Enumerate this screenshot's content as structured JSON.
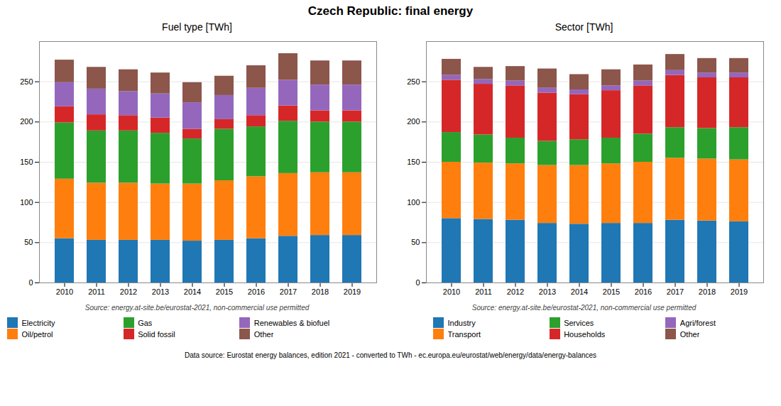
{
  "title": "Czech Republic: final energy",
  "annotations": [
    "Data source: Eurostat energy balances, edition 2021 - converted to TWh - ec.europa.eu/eurostat/web/energy/data/energy-balances"
  ],
  "chart_data": [
    {
      "type": "bar",
      "title": "Fuel type [TWh]",
      "stacked": true,
      "grid": true,
      "legend": "lower left",
      "categories": [
        "2010",
        "2011",
        "2012",
        "2013",
        "2014",
        "2015",
        "2016",
        "2017",
        "2018",
        "2019"
      ],
      "series": [
        {
          "name": "Electricity",
          "color": "#1f77b4",
          "values": [
            55,
            53,
            53,
            53,
            52,
            53,
            55,
            58,
            59,
            59
          ]
        },
        {
          "name": "Oil/petrol",
          "color": "#ff7f0e",
          "values": [
            74,
            71,
            71,
            70,
            71,
            74,
            77,
            78,
            78,
            78
          ]
        },
        {
          "name": "Gas",
          "color": "#2ca02c",
          "values": [
            70,
            65,
            65,
            63,
            56,
            64,
            62,
            65,
            63,
            63
          ]
        },
        {
          "name": "Solid fossil",
          "color": "#d62728",
          "values": [
            20,
            20,
            19,
            19,
            12,
            12,
            14,
            19,
            14,
            14
          ]
        },
        {
          "name": "Renewables & biofuel",
          "color": "#9467bd",
          "values": [
            30,
            32,
            30,
            30,
            33,
            30,
            34,
            32,
            32,
            32
          ]
        },
        {
          "name": "Other",
          "color": "#8c564b",
          "values": [
            28,
            27,
            27,
            26,
            25,
            24,
            28,
            33,
            30,
            30
          ]
        }
      ],
      "ylim": [
        0,
        300
      ],
      "yticks": [
        0,
        50,
        100,
        150,
        200,
        250
      ],
      "annotations": [
        "Source: energy.at-site.be/eurostat-2021, non-commercial use permitted"
      ]
    },
    {
      "type": "bar",
      "title": "Sector [TWh]",
      "stacked": true,
      "grid": true,
      "legend": "lower right",
      "categories": [
        "2010",
        "2011",
        "2012",
        "2013",
        "2014",
        "2015",
        "2016",
        "2017",
        "2018",
        "2019"
      ],
      "series": [
        {
          "name": "Industry",
          "color": "#1f77b4",
          "values": [
            80,
            79,
            78,
            74,
            73,
            74,
            74,
            78,
            77,
            76
          ]
        },
        {
          "name": "Transport",
          "color": "#ff7f0e",
          "values": [
            70,
            70,
            70,
            72,
            73,
            74,
            76,
            77,
            77,
            77
          ]
        },
        {
          "name": "Services",
          "color": "#2ca02c",
          "values": [
            37,
            35,
            32,
            30,
            32,
            32,
            35,
            38,
            38,
            40
          ]
        },
        {
          "name": "Households",
          "color": "#d62728",
          "values": [
            65,
            63,
            65,
            60,
            56,
            59,
            60,
            65,
            63,
            62
          ]
        },
        {
          "name": "Agri/forest",
          "color": "#9467bd",
          "values": [
            6,
            6,
            6,
            6,
            6,
            6,
            6,
            6,
            6,
            6
          ]
        },
        {
          "name": "Other",
          "color": "#8c564b",
          "values": [
            20,
            15,
            18,
            24,
            19,
            20,
            20,
            20,
            18,
            18
          ]
        }
      ],
      "ylim": [
        0,
        300
      ],
      "yticks": [
        0,
        50,
        100,
        150,
        200,
        250
      ],
      "annotations": [
        "Source: energy.at-site.be/eurostat-2021, non-commercial use permitted"
      ]
    }
  ]
}
